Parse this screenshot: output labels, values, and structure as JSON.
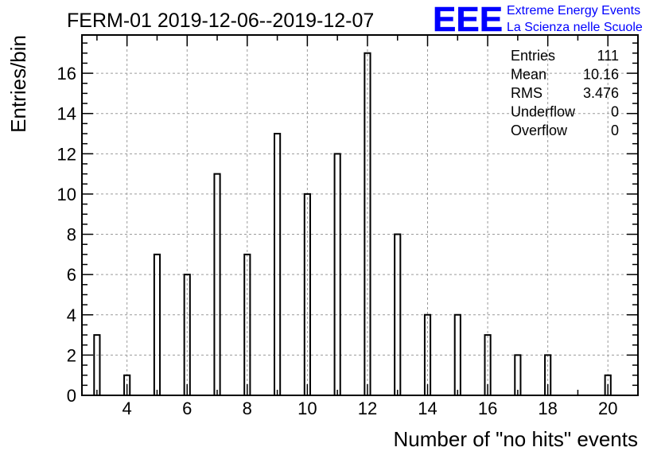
{
  "chart_data": {
    "type": "bar",
    "title": "FERM-01 2019-12-06--2019-12-07",
    "xlabel": "Number of \"no hits\" events",
    "ylabel": "Entries/bin",
    "xlim": [
      2.5,
      21
    ],
    "ylim": [
      0,
      17.9
    ],
    "grid": true,
    "x_ticks": [
      4,
      6,
      8,
      10,
      12,
      14,
      16,
      18,
      20
    ],
    "y_ticks": [
      0,
      2,
      4,
      6,
      8,
      10,
      12,
      14,
      16
    ],
    "x_tick_labels": [
      "4",
      "6",
      "8",
      "10",
      "12",
      "14",
      "16",
      "18",
      "20"
    ],
    "y_tick_labels": [
      "0",
      "2",
      "4",
      "6",
      "8",
      "10",
      "12",
      "14",
      "16"
    ],
    "bin_width": 0.19,
    "bins": [
      {
        "x": 3,
        "y": 3
      },
      {
        "x": 4,
        "y": 1
      },
      {
        "x": 5,
        "y": 7
      },
      {
        "x": 6,
        "y": 6
      },
      {
        "x": 7,
        "y": 11
      },
      {
        "x": 8,
        "y": 7
      },
      {
        "x": 9,
        "y": 13
      },
      {
        "x": 10,
        "y": 10
      },
      {
        "x": 11,
        "y": 12
      },
      {
        "x": 12,
        "y": 17
      },
      {
        "x": 13,
        "y": 8
      },
      {
        "x": 14,
        "y": 4
      },
      {
        "x": 15,
        "y": 4
      },
      {
        "x": 16,
        "y": 3
      },
      {
        "x": 17,
        "y": 2
      },
      {
        "x": 18,
        "y": 2
      },
      {
        "x": 20,
        "y": 1
      }
    ],
    "stats": [
      {
        "label": "Entries",
        "value": "111"
      },
      {
        "label": "Mean",
        "value": "10.16"
      },
      {
        "label": "RMS",
        "value": "3.476"
      },
      {
        "label": "Underflow",
        "value": "0"
      },
      {
        "label": "Overflow",
        "value": "0"
      }
    ]
  },
  "logo": {
    "mark": "EEE",
    "line1": "Extreme Energy Events",
    "line2": "La Scienza nelle Scuole",
    "color": "#0000ff"
  }
}
